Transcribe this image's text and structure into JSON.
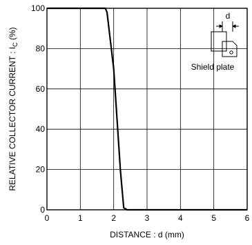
{
  "chart_data": {
    "type": "line",
    "title": "",
    "xlabel": "DISTANCE : d (mm)",
    "ylabel_main": "RELATIVE  COLLECTOR  CURRENT : I",
    "ylabel_sub": "C",
    "ylabel_unit": " (%)",
    "xlim": [
      0,
      6
    ],
    "ylim": [
      0,
      100
    ],
    "x_ticks": [
      "0",
      "1",
      "2",
      "3",
      "4",
      "5",
      "6"
    ],
    "y_ticks": [
      "0",
      "20",
      "40",
      "60",
      "80",
      "100"
    ],
    "grid": true,
    "series": [
      {
        "x": [
          0,
          1.75,
          1.8,
          2.0,
          2.1,
          2.2,
          2.3,
          2.4,
          3,
          6
        ],
        "values": [
          100,
          100,
          98,
          70,
          45,
          20,
          1,
          0,
          0,
          0
        ]
      }
    ],
    "annotations": {
      "inset_dimension": "d",
      "inset_label": "Shield plate"
    }
  }
}
